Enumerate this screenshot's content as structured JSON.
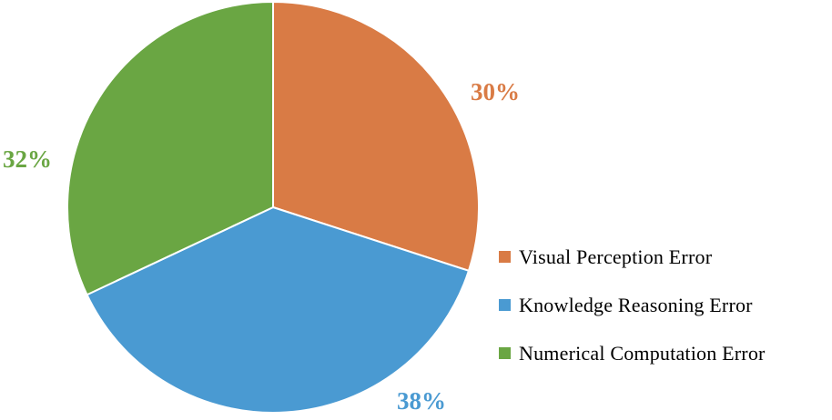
{
  "chart_data": {
    "type": "pie",
    "title": "",
    "categories": [
      "Visual Perception Error",
      "Knowledge Reasoning Error",
      "Numerical Computation Error"
    ],
    "values": [
      30,
      38,
      32
    ],
    "labels": [
      "30%",
      "38%",
      "32%"
    ],
    "colors": [
      "#d97b45",
      "#4a9ad2",
      "#6aa643"
    ],
    "start_angle_deg": 0,
    "direction": "clockwise",
    "legend_position": "right",
    "grid": false
  }
}
